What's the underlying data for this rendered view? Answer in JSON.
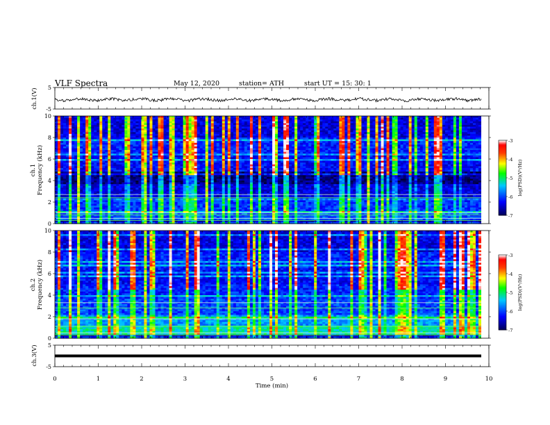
{
  "header": {
    "title": "VLF  Spectra",
    "date": "May 12, 2020",
    "station": "station= ATH",
    "start": "start  UT  =    15: 30: 1"
  },
  "chart_data": [
    {
      "type": "line",
      "panel": "ch1-waveform",
      "ylabel": "ch.1(V)",
      "ylim": [
        -5,
        5
      ],
      "yticks": [
        "5",
        "-5"
      ],
      "description_values": {
        "mean": 0,
        "amplitude_v": 0.5
      },
      "xlim": [
        0,
        10
      ]
    },
    {
      "type": "heatmap",
      "panel": "ch1-spectrogram",
      "ylabel": "ch.1\nFrequency (kHz)",
      "ylim": [
        0,
        10
      ],
      "yticks": [
        "0",
        "2",
        "4",
        "6",
        "8",
        "10"
      ],
      "xlim": [
        0,
        9.8
      ],
      "colorbar": {
        "label": "log(PSD)(V²/Hz)",
        "range": [
          -7,
          -3
        ],
        "ticks": [
          "-3",
          "-4",
          "-5",
          "-6",
          "-7"
        ]
      }
    },
    {
      "type": "heatmap",
      "panel": "ch2-spectrogram",
      "ylabel": "ch.2\nFrequency (kHz)",
      "ylim": [
        0,
        10
      ],
      "yticks": [
        "0",
        "2",
        "4",
        "6",
        "8",
        "10"
      ],
      "xlim": [
        0,
        9.8
      ],
      "colorbar": {
        "label": "log(PSD)(V²/Hz)",
        "range": [
          -7,
          -3
        ],
        "ticks": [
          "-3",
          "-4",
          "-5",
          "-6",
          "-7"
        ]
      }
    },
    {
      "type": "line",
      "panel": "ch3-waveform",
      "ylabel": "ch.3(V)",
      "ylim": [
        -5,
        5
      ],
      "yticks": [
        "5",
        "-5"
      ],
      "xlim": [
        0,
        10
      ],
      "xlabel": "Time  (min)",
      "xticks": [
        "0",
        "1",
        "2",
        "3",
        "4",
        "5",
        "6",
        "7",
        "8",
        "9",
        "10"
      ]
    }
  ]
}
